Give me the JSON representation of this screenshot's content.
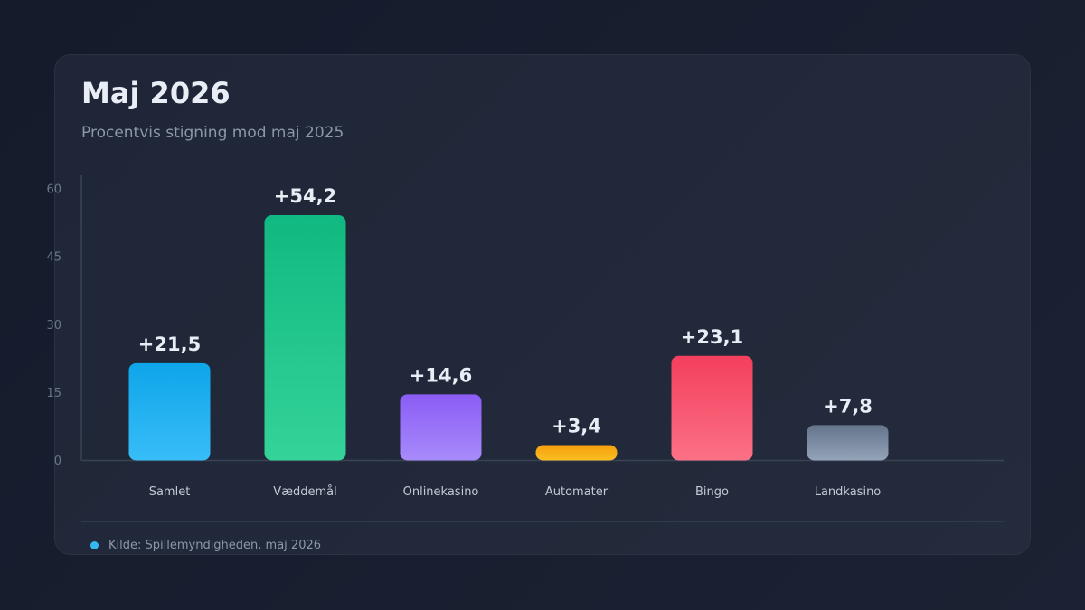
{
  "title": "Maj 2026",
  "subtitle": "Procentvis stigning mod maj 2025",
  "source": "Kilde: Spillemyndigheden, maj 2026",
  "chart_data": {
    "type": "bar",
    "categories": [
      "Samlet",
      "Væddemål",
      "Onlinekasino",
      "Automater",
      "Bingo",
      "Landkasino"
    ],
    "values": [
      21.5,
      54.2,
      14.6,
      3.4,
      23.1,
      7.8
    ],
    "value_labels": [
      "+21,5",
      "+54,2",
      "+14,6",
      "+3,4",
      "+23,1",
      "+7,8"
    ],
    "colors": [
      [
        "#0ea5e9",
        "#38bdf8"
      ],
      [
        "#10b981",
        "#34d399"
      ],
      [
        "#8b5cf6",
        "#a78bfa"
      ],
      [
        "#f59e0b",
        "#fbbf24"
      ],
      [
        "#f43f5e",
        "#fb7185"
      ],
      [
        "#64748b",
        "#94a3b8"
      ]
    ],
    "y_ticks": [
      0,
      15,
      30,
      45,
      60
    ],
    "y_tick_labels": [
      "0",
      "15",
      "30",
      "45",
      "60"
    ],
    "ylim": [
      0,
      60
    ],
    "grid": false,
    "legend": "none"
  }
}
